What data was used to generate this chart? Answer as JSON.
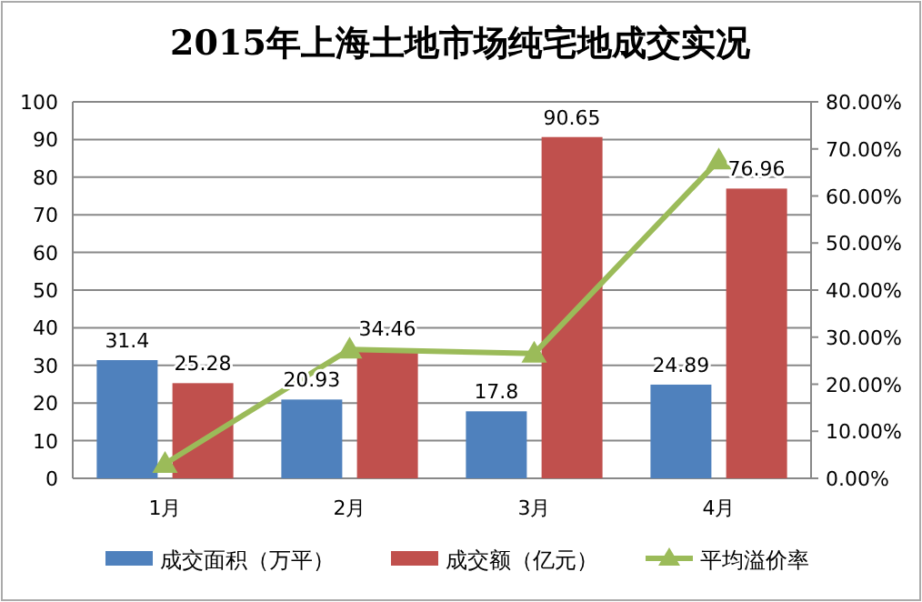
{
  "chart_data": {
    "type": "bar",
    "title": "2015年上海土地市场纯宅地成交实况",
    "categories": [
      "1月",
      "2月",
      "3月",
      "4月"
    ],
    "series": [
      {
        "name": "成交面积（万平）",
        "color": "#4f81bd",
        "values": [
          31.4,
          20.93,
          17.8,
          24.89
        ],
        "value_labels": [
          "31.4",
          "20.93",
          "17.8",
          "24.89"
        ]
      },
      {
        "name": "成交额（亿元）",
        "color": "#c0504d",
        "values": [
          25.28,
          34.46,
          90.65,
          76.96
        ],
        "value_labels": [
          "25.28",
          "34.46",
          "90.65",
          "76.96"
        ]
      },
      {
        "name": "平均溢价率",
        "type": "line",
        "axis": "y2",
        "color": "#9bbb59",
        "marker": "triangle",
        "values": [
          3.1,
          27.4,
          26.5,
          67.6
        ]
      }
    ],
    "ylim": [
      0,
      100
    ],
    "yticks": [
      0,
      10,
      20,
      30,
      40,
      50,
      60,
      70,
      80,
      90,
      100
    ],
    "y2lim": [
      0,
      80
    ],
    "y2ticks": [
      {
        "value": 0,
        "label": "0.00%"
      },
      {
        "value": 10,
        "label": "10.00%"
      },
      {
        "value": 20,
        "label": "20.00%"
      },
      {
        "value": 30,
        "label": "30.00%"
      },
      {
        "value": 40,
        "label": "40.00%"
      },
      {
        "value": 50,
        "label": "50.00%"
      },
      {
        "value": 60,
        "label": "60.00%"
      },
      {
        "value": 70,
        "label": "70.00%"
      },
      {
        "value": 80,
        "label": "80.00%"
      }
    ],
    "grid": "y",
    "legend": "bottom"
  }
}
